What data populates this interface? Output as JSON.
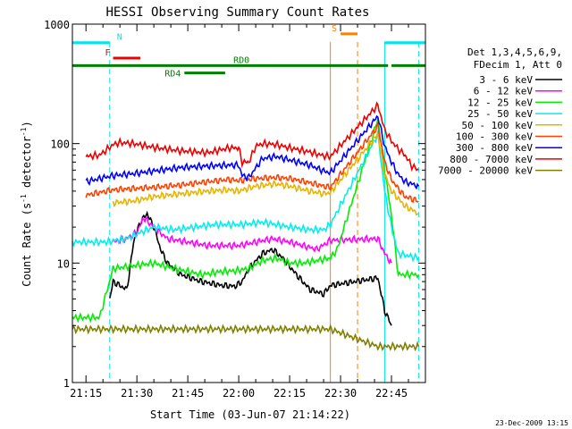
{
  "chart_data": {
    "type": "line",
    "title": "HESSI Observing Summary Count Rates",
    "xlabel": "Start Time (03-Jun-07 21:14:22)",
    "ylabel_main": "Count Rate (s",
    "ylabel_sup1": "-1",
    "ylabel_mid": " detector",
    "ylabel_sup2": "-1",
    "ylabel_end": ")",
    "yscale": "log",
    "xlim_min": [
      -4,
      100
    ],
    "ylim": [
      1,
      1000
    ],
    "x_ticks": [
      {
        "min": 0,
        "label": "21:15"
      },
      {
        "min": 15,
        "label": "21:30"
      },
      {
        "min": 30,
        "label": "21:45"
      },
      {
        "min": 45,
        "label": "22:00"
      },
      {
        "min": 60,
        "label": "22:15"
      },
      {
        "min": 75,
        "label": "22:30"
      },
      {
        "min": 90,
        "label": "22:45"
      }
    ],
    "y_ticks": [
      {
        "value": 1,
        "label": "1"
      },
      {
        "value": 10,
        "label": "10"
      },
      {
        "value": 100,
        "label": "100"
      },
      {
        "value": 1000,
        "label": "1000"
      }
    ],
    "legend_header": [
      "Det 1,3,4,5,6,9,",
      "FDecim 1, Att 0"
    ],
    "legend_position": "right",
    "series": [
      {
        "name": "3 - 6 keV",
        "color": "#000000",
        "points": [
          [
            7,
            5
          ],
          [
            8,
            7
          ],
          [
            12,
            6
          ],
          [
            13,
            9
          ],
          [
            14,
            15
          ],
          [
            16,
            22
          ],
          [
            18,
            26
          ],
          [
            20,
            20
          ],
          [
            22,
            13
          ],
          [
            24,
            10
          ],
          [
            28,
            8
          ],
          [
            34,
            7
          ],
          [
            40,
            6.5
          ],
          [
            44,
            6.4
          ],
          [
            46,
            7
          ],
          [
            48,
            9
          ],
          [
            52,
            12
          ],
          [
            55,
            13
          ],
          [
            58,
            11
          ],
          [
            62,
            8
          ],
          [
            66,
            6
          ],
          [
            70,
            5.5
          ],
          [
            72,
            6.5
          ],
          [
            86,
            7.5
          ],
          [
            88,
            4
          ],
          [
            90,
            3
          ]
        ]
      },
      {
        "name": "6 - 12 keV",
        "color": "#ff00ff",
        "points": [
          [
            8,
            15
          ],
          [
            12,
            16
          ],
          [
            15,
            18
          ],
          [
            17,
            24
          ],
          [
            20,
            20
          ],
          [
            24,
            16
          ],
          [
            30,
            15
          ],
          [
            36,
            14
          ],
          [
            42,
            14
          ],
          [
            45,
            14
          ],
          [
            50,
            15
          ],
          [
            55,
            16
          ],
          [
            60,
            15
          ],
          [
            64,
            14
          ],
          [
            68,
            13
          ],
          [
            72,
            15.5
          ],
          [
            86,
            16
          ],
          [
            88,
            12
          ],
          [
            90,
            10
          ]
        ]
      },
      {
        "name": "12 - 25 keV",
        "color": "#00ee00",
        "points": [
          [
            -4,
            3.5
          ],
          [
            4,
            3.5
          ],
          [
            8,
            9
          ],
          [
            14,
            9.5
          ],
          [
            20,
            10
          ],
          [
            26,
            9
          ],
          [
            34,
            8
          ],
          [
            40,
            8.5
          ],
          [
            44,
            8.6
          ],
          [
            48,
            9
          ],
          [
            52,
            10.5
          ],
          [
            56,
            11
          ],
          [
            60,
            10
          ],
          [
            64,
            10
          ],
          [
            68,
            10.5
          ],
          [
            72,
            11
          ],
          [
            74,
            13
          ],
          [
            86,
            160
          ],
          [
            88,
            60
          ],
          [
            90,
            25
          ],
          [
            92,
            8
          ],
          [
            98,
            8
          ]
        ]
      },
      {
        "name": "25 - 50 keV",
        "color": "#00eeee",
        "points": [
          [
            -4,
            15
          ],
          [
            6,
            15
          ],
          [
            12,
            16
          ],
          [
            16,
            18
          ],
          [
            20,
            20
          ],
          [
            26,
            19
          ],
          [
            32,
            20
          ],
          [
            38,
            21
          ],
          [
            44,
            21
          ],
          [
            46,
            21
          ],
          [
            52,
            22
          ],
          [
            56,
            21
          ],
          [
            60,
            20
          ],
          [
            66,
            19
          ],
          [
            70,
            19
          ],
          [
            72,
            21
          ],
          [
            74,
            27
          ],
          [
            86,
            120
          ],
          [
            88,
            40
          ],
          [
            90,
            20
          ],
          [
            92,
            12
          ],
          [
            98,
            11
          ]
        ]
      },
      {
        "name": "50 - 100 keV",
        "color": "#e6b400",
        "points": [
          [
            8,
            32
          ],
          [
            14,
            33
          ],
          [
            20,
            36
          ],
          [
            28,
            38
          ],
          [
            36,
            40
          ],
          [
            42,
            41
          ],
          [
            45,
            40
          ],
          [
            50,
            44
          ],
          [
            56,
            46
          ],
          [
            60,
            44
          ],
          [
            66,
            40
          ],
          [
            70,
            38
          ],
          [
            72,
            39
          ],
          [
            86,
            120
          ],
          [
            88,
            55
          ],
          [
            90,
            40
          ],
          [
            94,
            30
          ],
          [
            98,
            26
          ]
        ]
      },
      {
        "name": "100 - 300 keV",
        "color": "#ff4000",
        "points": [
          [
            0,
            37
          ],
          [
            8,
            41
          ],
          [
            14,
            42
          ],
          [
            20,
            43
          ],
          [
            28,
            45
          ],
          [
            36,
            48
          ],
          [
            42,
            50
          ],
          [
            45,
            49
          ],
          [
            50,
            51
          ],
          [
            56,
            52
          ],
          [
            60,
            51
          ],
          [
            66,
            47
          ],
          [
            70,
            44
          ],
          [
            72,
            43
          ],
          [
            86,
            140
          ],
          [
            88,
            70
          ],
          [
            90,
            50
          ],
          [
            92,
            42
          ],
          [
            94,
            36
          ],
          [
            98,
            33
          ]
        ]
      },
      {
        "name": "300 - 800 keV",
        "color": "#0000ff",
        "points": [
          [
            0,
            48
          ],
          [
            8,
            54
          ],
          [
            14,
            56
          ],
          [
            20,
            59
          ],
          [
            28,
            63
          ],
          [
            36,
            65
          ],
          [
            42,
            66
          ],
          [
            45,
            66
          ],
          [
            46,
            54
          ],
          [
            48,
            52
          ],
          [
            52,
            75
          ],
          [
            56,
            78
          ],
          [
            60,
            73
          ],
          [
            66,
            66
          ],
          [
            70,
            59
          ],
          [
            72,
            57
          ],
          [
            86,
            170
          ],
          [
            88,
            95
          ],
          [
            90,
            70
          ],
          [
            92,
            55
          ],
          [
            94,
            48
          ],
          [
            98,
            44
          ]
        ]
      },
      {
        "name": "800 - 7000 keV",
        "color": "#ee0000",
        "points": [
          [
            0,
            78
          ],
          [
            4,
            80
          ],
          [
            8,
            98
          ],
          [
            10,
            102
          ],
          [
            14,
            100
          ],
          [
            20,
            93
          ],
          [
            28,
            87
          ],
          [
            36,
            84
          ],
          [
            42,
            92
          ],
          [
            45,
            92
          ],
          [
            46,
            70
          ],
          [
            48,
            70
          ],
          [
            50,
            95
          ],
          [
            52,
            100
          ],
          [
            56,
            98
          ],
          [
            60,
            92
          ],
          [
            66,
            85
          ],
          [
            70,
            79
          ],
          [
            72,
            78
          ],
          [
            86,
            210
          ],
          [
            88,
            130
          ],
          [
            90,
            105
          ],
          [
            92,
            90
          ],
          [
            94,
            80
          ],
          [
            96,
            65
          ],
          [
            98,
            60
          ]
        ]
      },
      {
        "name": "7000 - 20000 keV",
        "color": "#808000",
        "points": [
          [
            -4,
            2.8
          ],
          [
            72,
            2.8
          ],
          [
            86,
            2
          ],
          [
            98,
            2
          ]
        ]
      }
    ],
    "annotations": [
      {
        "label": "N",
        "color": "#00e5ee",
        "kind": "bar",
        "ranges": [
          [
            -4,
            7
          ],
          [
            88,
            100
          ]
        ],
        "y": 700
      },
      {
        "label": "F",
        "color": "#ee0000",
        "kind": "bar",
        "ranges": [
          [
            8,
            16
          ]
        ],
        "y": 520
      },
      {
        "label": "RD0",
        "color": "#008000",
        "kind": "bar",
        "ranges": [
          [
            -4,
            89
          ],
          [
            90,
            100
          ]
        ],
        "y": 450
      },
      {
        "label": "RD4",
        "color": "#008000",
        "kind": "bar",
        "ranges": [
          [
            29,
            41
          ]
        ],
        "y": 390
      },
      {
        "label": "S",
        "color": "#ff7f00",
        "kind": "bar",
        "ranges": [
          [
            75,
            80
          ]
        ],
        "y": 830
      }
    ],
    "vertical_lines": [
      {
        "min": 7,
        "color": "#00e5ee",
        "style": "dashed"
      },
      {
        "min": 72,
        "color": "#ff7f00",
        "style": "solid"
      },
      {
        "min": 80,
        "color": "#ff7f00",
        "style": "dashed"
      },
      {
        "min": 88,
        "color": "#00e5ee",
        "style": "solid"
      },
      {
        "min": 98,
        "color": "#00e5ee",
        "style": "dashed"
      }
    ],
    "grid": false
  },
  "footer_timestamp": "23-Dec-2009 13:15"
}
